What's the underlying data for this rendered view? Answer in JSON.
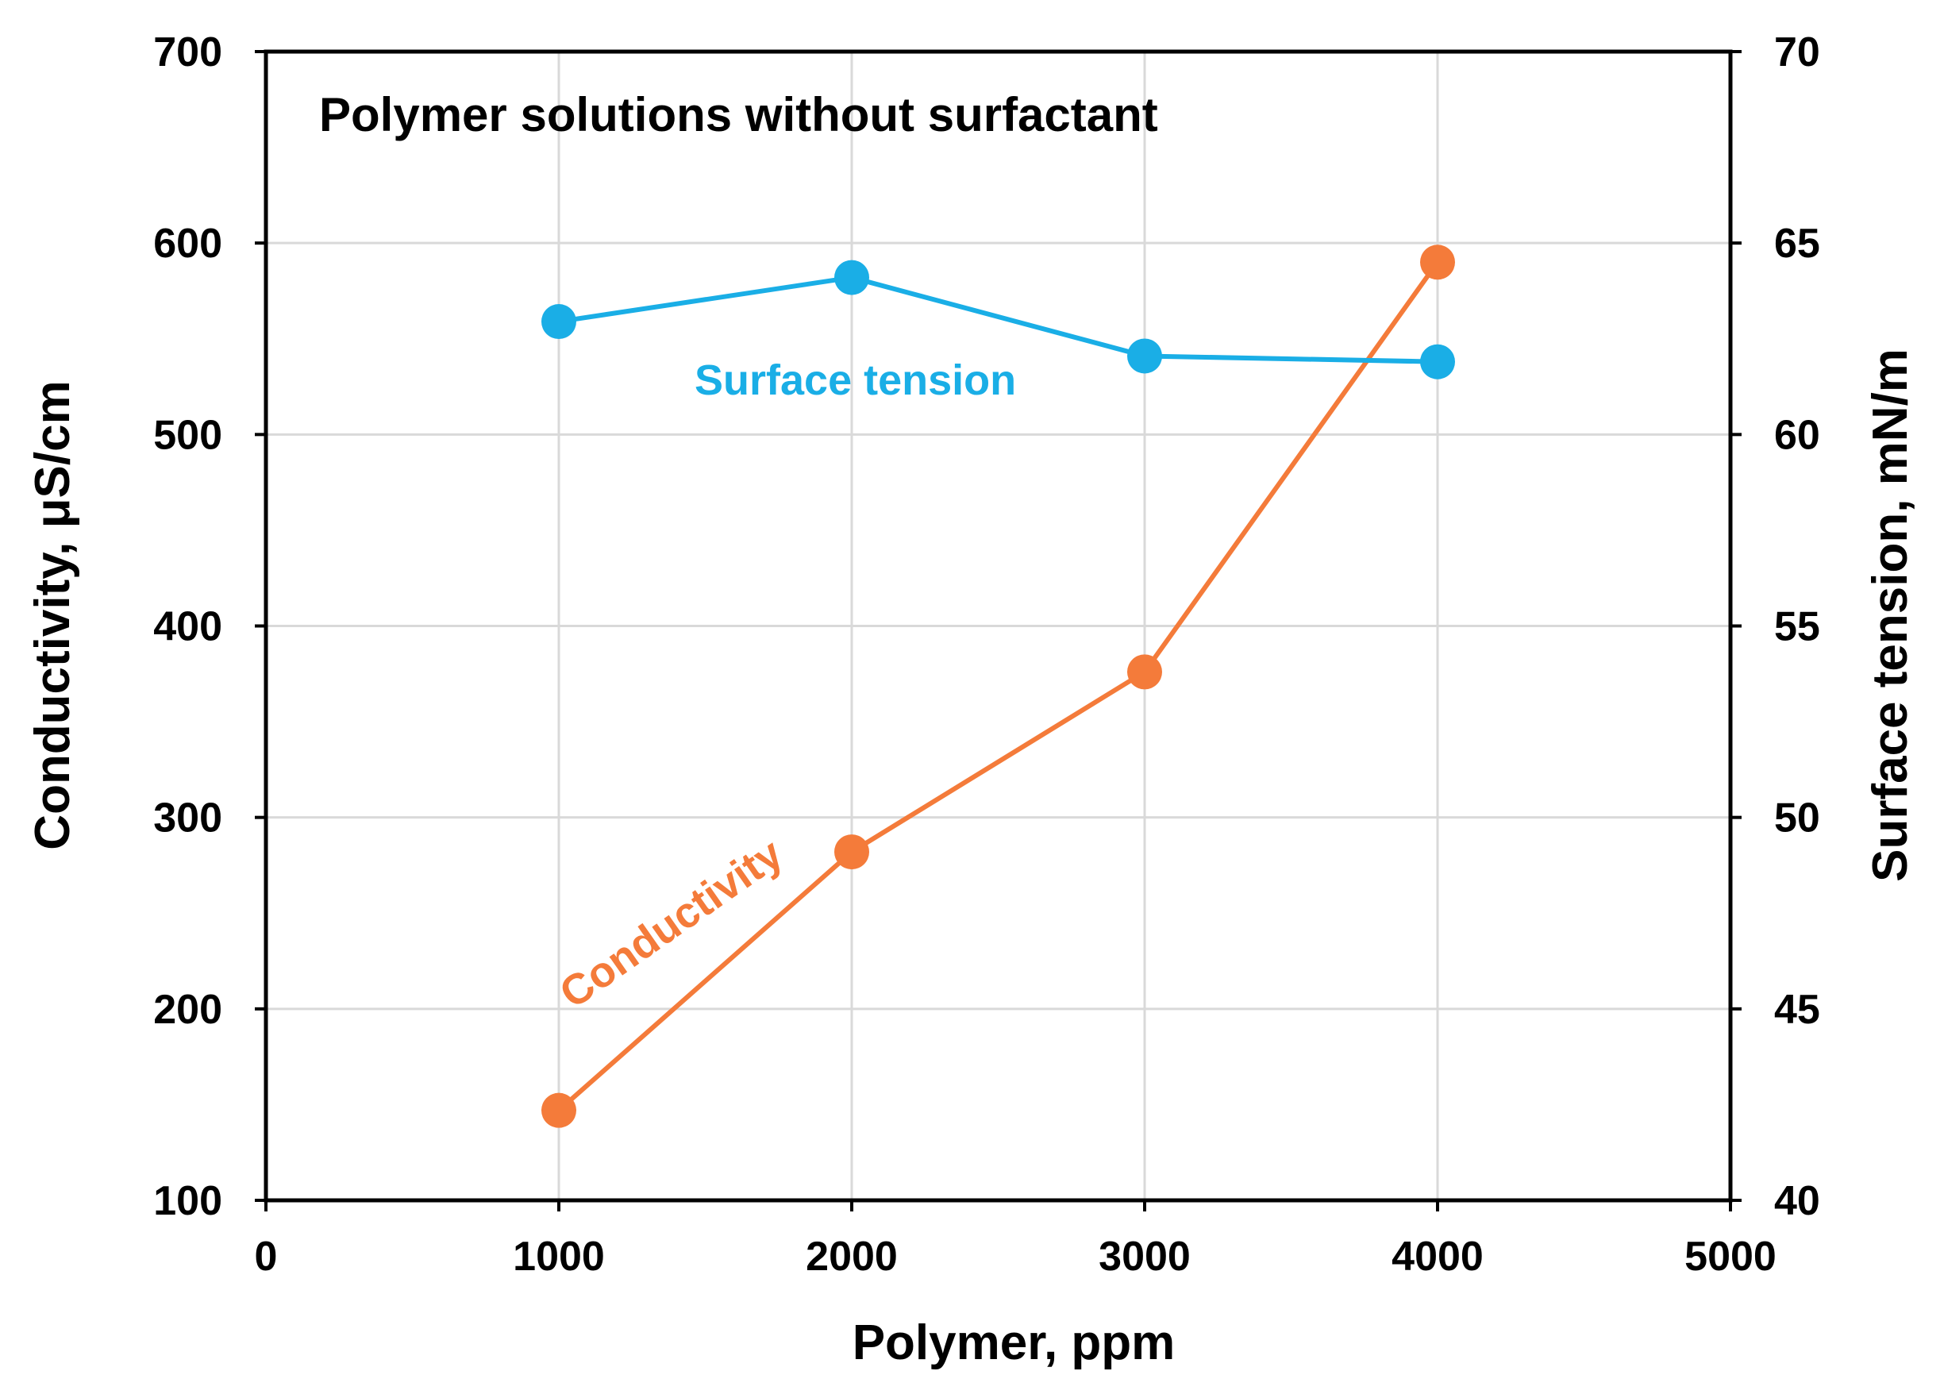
{
  "chart_data": {
    "type": "line",
    "title": "Polymer solutions without surfactant",
    "xlabel": "Polymer, ppm",
    "ylabel_left": "Conductivity, μS/cm",
    "ylabel_right": "Surface tension, mN/m",
    "xlim": [
      0,
      5000
    ],
    "ylim_left": [
      100,
      700
    ],
    "ylim_right": [
      40,
      70
    ],
    "x_ticks": [
      "0",
      "1000",
      "2000",
      "3000",
      "4000",
      "5000"
    ],
    "y_left_ticks": [
      "100",
      "200",
      "300",
      "400",
      "500",
      "600",
      "700"
    ],
    "y_right_ticks": [
      "40",
      "45",
      "50",
      "55",
      "60",
      "65",
      "70"
    ],
    "grid": true,
    "legend": "none",
    "series": [
      {
        "name": "Conductivity",
        "axis": "left",
        "color": "#F47B3A",
        "x": [
          1000,
          2000,
          3000,
          4000
        ],
        "values": [
          147,
          282,
          376,
          590
        ]
      },
      {
        "name": "Surface tension",
        "axis": "right",
        "color": "#1AAEE6",
        "x": [
          1000,
          2000,
          3000,
          4000
        ],
        "values": [
          62.95,
          64.1,
          62.05,
          61.9
        ]
      }
    ]
  }
}
